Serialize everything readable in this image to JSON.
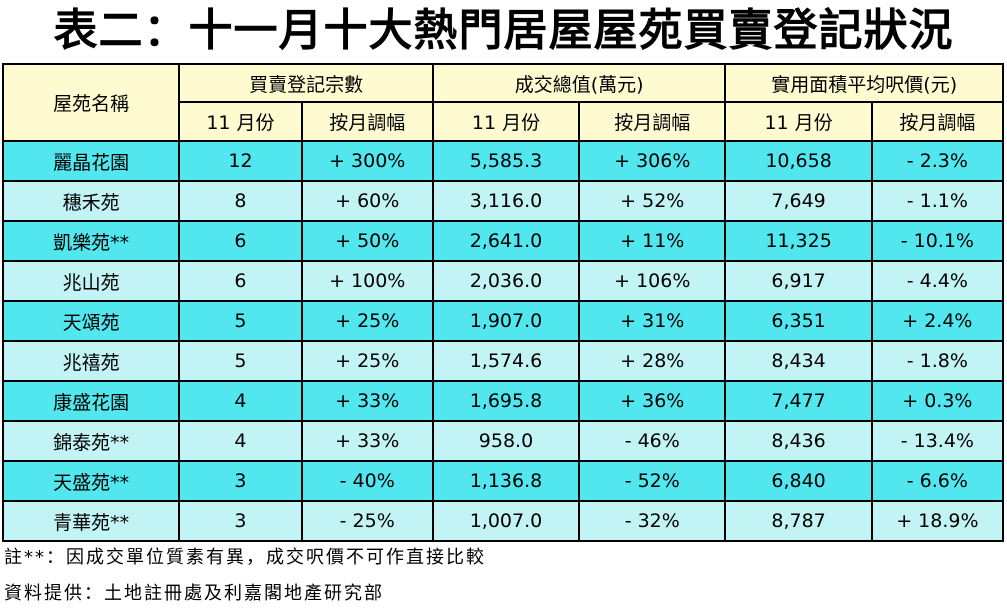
{
  "title": "表二：十一月十大熱門居屋屋苑買賣登記狀況",
  "headers": {
    "estate": "屋苑名稱",
    "groups": [
      "買賣登記宗數",
      "成交總值(萬元)",
      "實用面積平均呎價(元)"
    ],
    "sub": [
      "11 月份",
      "按月調幅",
      "11 月份",
      "按月調幅",
      "11 月份",
      "按月調幅"
    ]
  },
  "rows": [
    [
      "麗晶花園",
      "12",
      "+ 300%",
      "5,585.3",
      "+ 306%",
      "10,658",
      "- 2.3%"
    ],
    [
      "穗禾苑",
      "8",
      "+ 60%",
      "3,116.0",
      "+ 52%",
      "7,649",
      "- 1.1%"
    ],
    [
      "凱樂苑**",
      "6",
      "+ 50%",
      "2,641.0",
      "+ 11%",
      "11,325",
      "- 10.1%"
    ],
    [
      "兆山苑",
      "6",
      "+ 100%",
      "2,036.0",
      "+ 106%",
      "6,917",
      "- 4.4%"
    ],
    [
      "天頌苑",
      "5",
      "+ 25%",
      "1,907.0",
      "+ 31%",
      "6,351",
      "+ 2.4%"
    ],
    [
      "兆禧苑",
      "5",
      "+ 25%",
      "1,574.6",
      "+ 28%",
      "8,434",
      "- 1.8%"
    ],
    [
      "康盛花園",
      "4",
      "+ 33%",
      "1,695.8",
      "+ 36%",
      "7,477",
      "+ 0.3%"
    ],
    [
      "錦泰苑**",
      "4",
      "+ 33%",
      "958.0",
      "- 46%",
      "8,436",
      "- 13.4%"
    ],
    [
      "天盛苑**",
      "3",
      "- 40%",
      "1,136.8",
      "- 52%",
      "6,840",
      "- 6.6%"
    ],
    [
      "青華苑**",
      "3",
      "- 25%",
      "1,007.0",
      "- 32%",
      "8,787",
      "+ 18.9%"
    ]
  ],
  "notes": {
    "footnote": "註**：因成交單位質素有異，成交呎價不可作直接比較",
    "source": "資料提供：土地註冊處及利嘉閣地產研究部"
  }
}
